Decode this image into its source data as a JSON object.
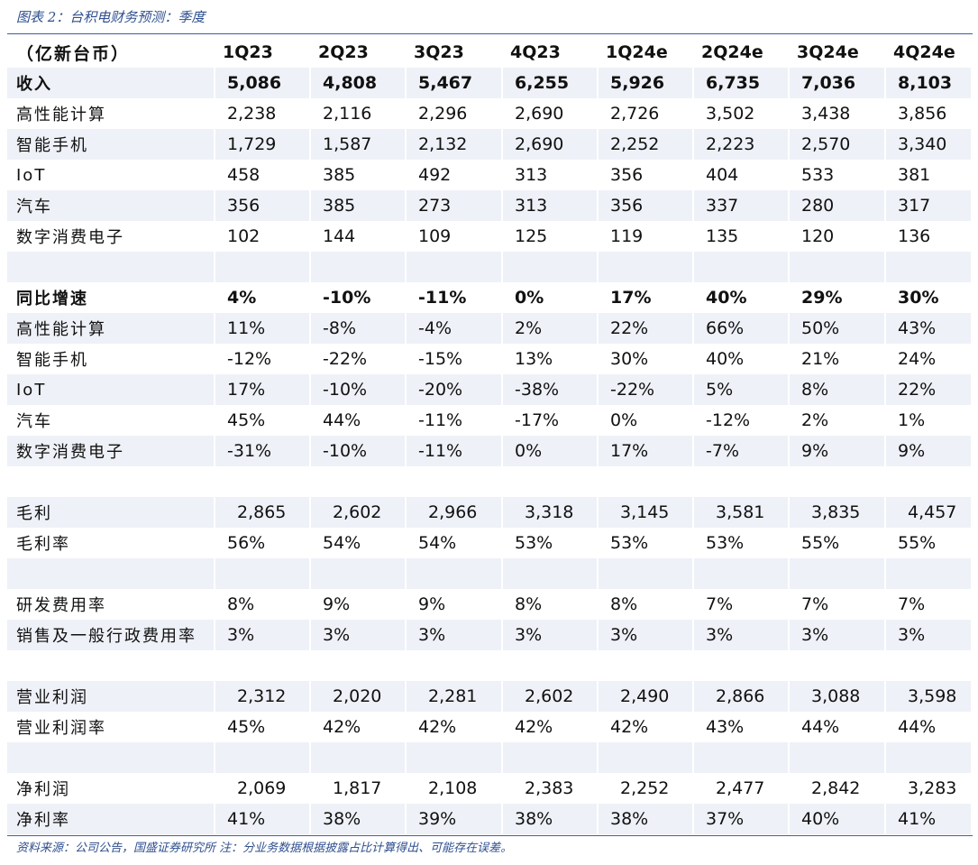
{
  "caption": "图表 2：台积电财务预测：季度",
  "source": "资料来源：公司公告，国盛证券研究所   注：分业务数据根据披露占比计算得出、可能存在误差。",
  "header": {
    "label": "（亿新台币）",
    "periods": [
      "1Q23",
      "2Q23",
      "3Q23",
      "4Q23",
      "1Q24e",
      "2Q24e",
      "3Q24e",
      "4Q24e"
    ]
  },
  "rows": [
    {
      "label": "收入",
      "values": [
        "5,086",
        "4,808",
        "5,467",
        "6,255",
        "5,926",
        "6,735",
        "7,036",
        "8,103"
      ],
      "bold": true
    },
    {
      "label": "高性能计算",
      "values": [
        "2,238",
        "2,116",
        "2,296",
        "2,690",
        "2,726",
        "3,502",
        "3,438",
        "3,856"
      ]
    },
    {
      "label": "智能手机",
      "values": [
        "1,729",
        "1,587",
        "2,132",
        "2,690",
        "2,252",
        "2,223",
        "2,570",
        "3,340"
      ]
    },
    {
      "label": "IoT",
      "values": [
        "458",
        "385",
        "492",
        "313",
        "356",
        "404",
        "533",
        "381"
      ]
    },
    {
      "label": "汽车",
      "values": [
        "356",
        "385",
        "273",
        "313",
        "356",
        "337",
        "280",
        "317"
      ]
    },
    {
      "label": "数字消费电子",
      "values": [
        "102",
        "144",
        "109",
        "125",
        "119",
        "135",
        "120",
        "136"
      ]
    },
    {
      "label": "",
      "values": [
        "",
        "",
        "",
        "",
        "",
        "",
        "",
        ""
      ]
    },
    {
      "label": "同比增速",
      "values": [
        "4%",
        "-10%",
        "-11%",
        "0%",
        "17%",
        "40%",
        "29%",
        "30%"
      ],
      "bold": true
    },
    {
      "label": "高性能计算",
      "values": [
        "11%",
        "-8%",
        "-4%",
        "2%",
        "22%",
        "66%",
        "50%",
        "43%"
      ]
    },
    {
      "label": "智能手机",
      "values": [
        "-12%",
        "-22%",
        "-15%",
        "13%",
        "30%",
        "40%",
        "21%",
        "24%"
      ]
    },
    {
      "label": "IoT",
      "values": [
        "17%",
        "-10%",
        "-20%",
        "-38%",
        "-22%",
        "5%",
        "8%",
        "22%"
      ]
    },
    {
      "label": "汽车",
      "values": [
        "45%",
        "44%",
        "-11%",
        "-17%",
        "0%",
        "-12%",
        "2%",
        "1%"
      ]
    },
    {
      "label": "数字消费电子",
      "values": [
        "-31%",
        "-10%",
        "-11%",
        "0%",
        "17%",
        "-7%",
        "9%",
        "9%"
      ]
    },
    {
      "label": "",
      "values": [
        "",
        "",
        "",
        "",
        "",
        "",
        "",
        ""
      ]
    },
    {
      "label": "毛利",
      "values": [
        "2,865",
        "2,602",
        "2,966",
        "3,318",
        "3,145",
        "3,581",
        "3,835",
        "4,457"
      ],
      "pad": true
    },
    {
      "label": "毛利率",
      "values": [
        "56%",
        "54%",
        "54%",
        "53%",
        "53%",
        "53%",
        "55%",
        "55%"
      ]
    },
    {
      "label": "",
      "values": [
        "",
        "",
        "",
        "",
        "",
        "",
        "",
        ""
      ]
    },
    {
      "label": "研发费用率",
      "values": [
        "8%",
        "9%",
        "9%",
        "8%",
        "8%",
        "7%",
        "7%",
        "7%"
      ]
    },
    {
      "label": "销售及一般行政费用率",
      "values": [
        "3%",
        "3%",
        "3%",
        "3%",
        "3%",
        "3%",
        "3%",
        "3%"
      ]
    },
    {
      "label": "",
      "values": [
        "",
        "",
        "",
        "",
        "",
        "",
        "",
        ""
      ]
    },
    {
      "label": "营业利润",
      "values": [
        "2,312",
        "2,020",
        "2,281",
        "2,602",
        "2,490",
        "2,866",
        "3,088",
        "3,598"
      ],
      "pad": true
    },
    {
      "label": "营业利润率",
      "values": [
        "45%",
        "42%",
        "42%",
        "42%",
        "42%",
        "43%",
        "44%",
        "44%"
      ]
    },
    {
      "label": "",
      "values": [
        "",
        "",
        "",
        "",
        "",
        "",
        "",
        ""
      ]
    },
    {
      "label": "净利润",
      "values": [
        "2,069",
        "1,817",
        "2,108",
        "2,383",
        "2,252",
        "2,477",
        "2,842",
        "3,283"
      ],
      "pad": true
    },
    {
      "label": "净利率",
      "values": [
        "41%",
        "38%",
        "39%",
        "38%",
        "38%",
        "37%",
        "40%",
        "41%"
      ]
    }
  ]
}
